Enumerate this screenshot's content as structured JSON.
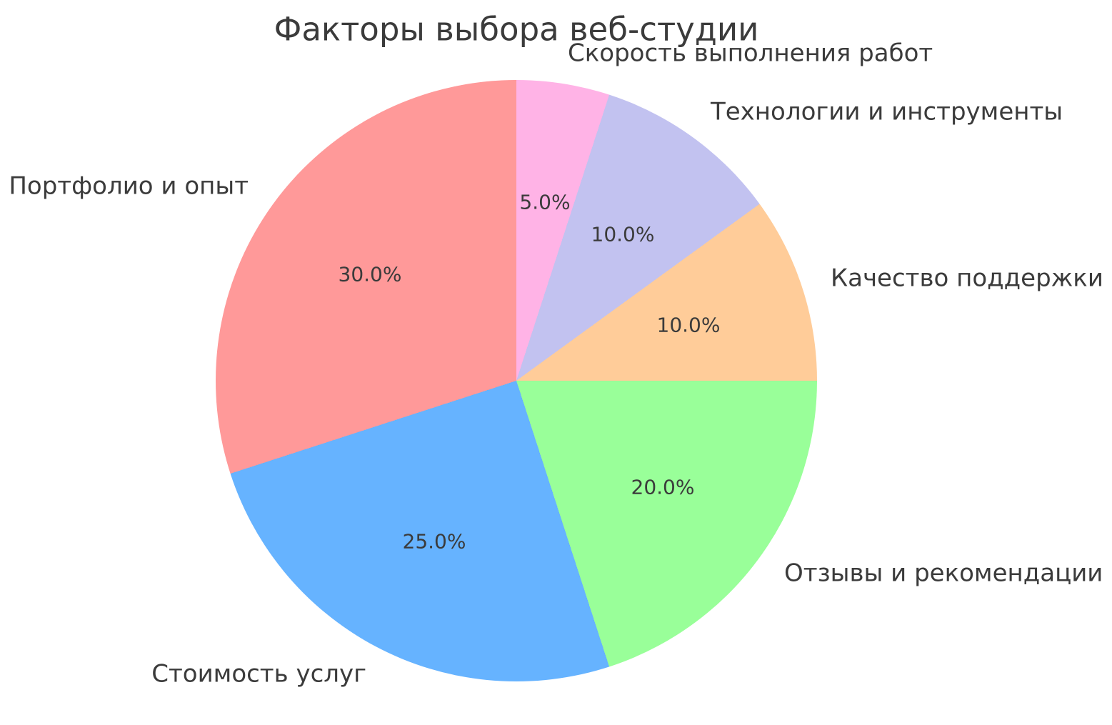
{
  "chart_data": {
    "type": "pie",
    "title": "Факторы выбора веб-студии",
    "start_angle": 90,
    "direction": "counterclockwise",
    "legend": "none",
    "text_color": "#3b3b3b",
    "background_color": "#ffffff",
    "categories": [
      "Портфолио и опыт",
      "Стоимость услуг",
      "Отзывы и рекомендации",
      "Качество поддержки",
      "Технологии и инструменты",
      "Скорость выполнения работ"
    ],
    "values": [
      30.0,
      25.0,
      20.0,
      10.0,
      10.0,
      5.0
    ],
    "slices": [
      {
        "label": "Портфолио и опыт",
        "value": 30.0,
        "pct_label": "30.0%",
        "color": "#ff9999"
      },
      {
        "label": "Стоимость услуг",
        "value": 25.0,
        "pct_label": "25.0%",
        "color": "#66b3ff"
      },
      {
        "label": "Отзывы и рекомендации",
        "value": 20.0,
        "pct_label": "20.0%",
        "color": "#99ff99"
      },
      {
        "label": "Качество поддержки",
        "value": 10.0,
        "pct_label": "10.0%",
        "color": "#ffcc99"
      },
      {
        "label": "Технологии и инструменты",
        "value": 10.0,
        "pct_label": "10.0%",
        "color": "#c2c2f0"
      },
      {
        "label": "Скорость выполнения работ",
        "value": 5.0,
        "pct_label": "5.0%",
        "color": "#ffb3e6"
      }
    ]
  }
}
